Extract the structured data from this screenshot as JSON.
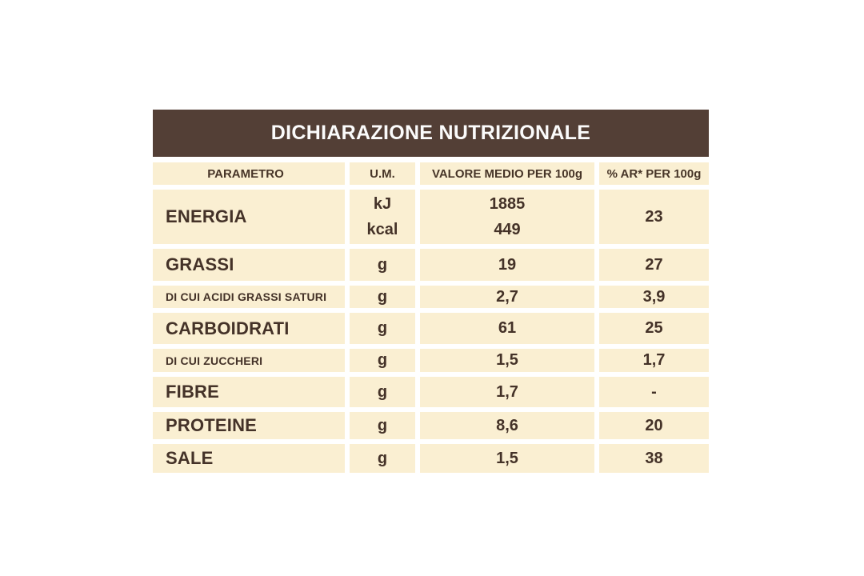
{
  "colors": {
    "page_background": "#ffffff",
    "header_bg": "#533f36",
    "header_text": "#fbfbfb",
    "cell_bg": "#faefd2",
    "cell_text": "#443228"
  },
  "table": {
    "title": "DICHIARAZIONE NUTRIZIONALE",
    "columns": {
      "param": "PARAMETRO",
      "um": "U.M.",
      "value": "VALORE MEDIO PER 100g",
      "ar": "% AR* PER 100g"
    },
    "rows": [
      {
        "param": "ENERGIA",
        "um": [
          "kJ",
          "kcal"
        ],
        "value": [
          "1885",
          "449"
        ],
        "ar": "23"
      },
      {
        "param": "GRASSI",
        "um": "g",
        "value": "19",
        "ar": "27"
      },
      {
        "param": "DI CUI ACIDI GRASSI SATURI",
        "um": "g",
        "value": "2,7",
        "ar": "3,9"
      },
      {
        "param": "CARBOIDRATI",
        "um": "g",
        "value": "61",
        "ar": "25"
      },
      {
        "param": "DI CUI ZUCCHERI",
        "um": "g",
        "value": "1,5",
        "ar": "1,7"
      },
      {
        "param": "FIBRE",
        "um": "g",
        "value": "1,7",
        "ar": "-"
      },
      {
        "param": "PROTEINE",
        "um": "g",
        "value": "8,6",
        "ar": "20"
      },
      {
        "param": "SALE",
        "um": "g",
        "value": "1,5",
        "ar": "38"
      }
    ]
  }
}
